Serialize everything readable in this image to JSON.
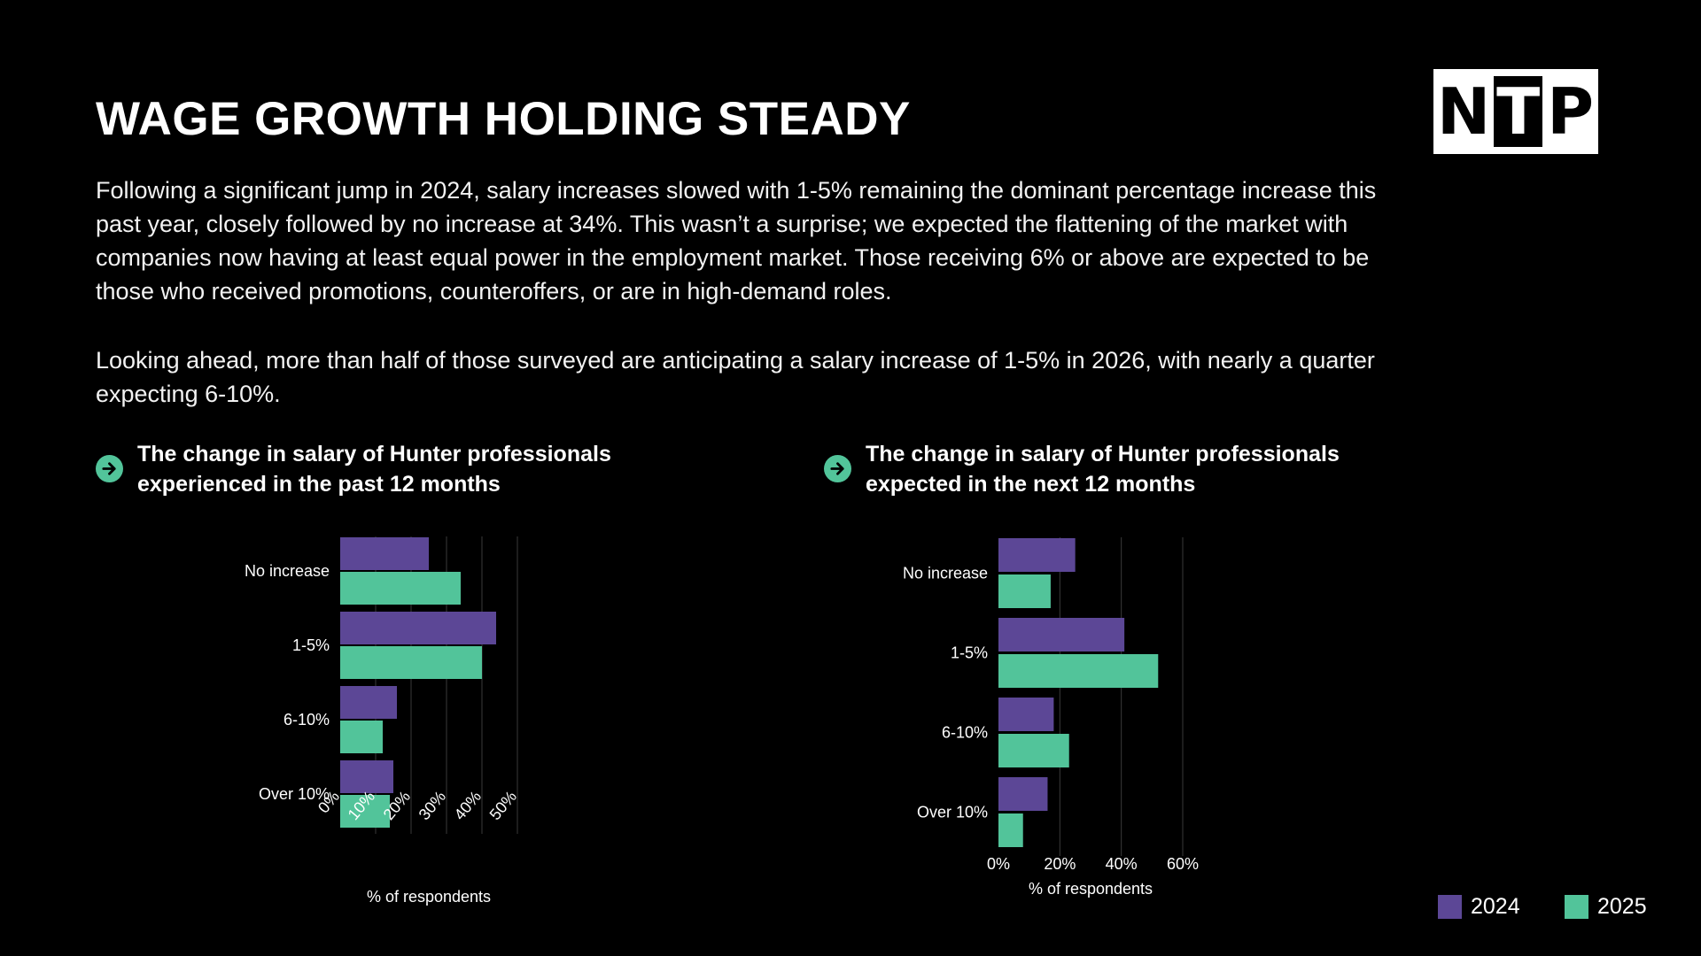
{
  "title": "WAGE GROWTH HOLDING STEADY",
  "logo": {
    "letters": [
      "N",
      "T",
      "P"
    ]
  },
  "paragraphs": [
    "Following a significant jump in 2024, salary increases slowed with 1-5% remaining the dominant percentage increase this past year, closely followed by no increase at 34%. This wasn’t a surprise; we expected the flattening of the market with companies now having at least equal power in the employment market. Those receiving 6% or above are expected to be those who received promotions, counteroffers, or are in high-demand roles.",
    "Looking ahead, more than half of those surveyed are anticipating a salary increase of 1-5% in 2026, with nearly a quarter expecting 6-10%."
  ],
  "colors": {
    "s2024": "#5c4796",
    "s2025": "#52c49a",
    "grid": "#3a3a3a",
    "accent": "#52c49a"
  },
  "legend": [
    {
      "label": "2024",
      "color": "#5c4796"
    },
    {
      "label": "2025",
      "color": "#52c49a"
    }
  ],
  "chart_data": [
    {
      "type": "bar",
      "orientation": "horizontal",
      "title": "The change in salary of Hunter professionals experienced in the past 12 months",
      "categories": [
        "No increase",
        "1-5%",
        "6-10%",
        "Over 10%"
      ],
      "series": [
        {
          "name": "2024",
          "values": [
            25,
            44,
            16,
            15
          ]
        },
        {
          "name": "2025",
          "values": [
            34,
            40,
            12,
            14
          ]
        }
      ],
      "xlabel": "% of respondents",
      "xlim": [
        0,
        50
      ],
      "ticks": [
        "0%",
        "10%",
        "20%",
        "30%",
        "40%",
        "50%"
      ],
      "tick_values": [
        0,
        10,
        20,
        30,
        40,
        50
      ],
      "tick_rotation": "-45deg",
      "legend": "bottom-right"
    },
    {
      "type": "bar",
      "orientation": "horizontal",
      "title": "The change in salary of Hunter professionals expected in the next 12 months",
      "categories": [
        "No increase",
        "1-5%",
        "6-10%",
        "Over 10%"
      ],
      "series": [
        {
          "name": "2024",
          "values": [
            25,
            41,
            18,
            16
          ]
        },
        {
          "name": "2025",
          "values": [
            17,
            52,
            23,
            8
          ]
        }
      ],
      "xlabel": "% of respondents",
      "xlim": [
        0,
        60
      ],
      "ticks": [
        "0%",
        "20%",
        "40%",
        "60%"
      ],
      "tick_values": [
        0,
        20,
        40,
        60
      ],
      "legend": "bottom-right"
    }
  ]
}
